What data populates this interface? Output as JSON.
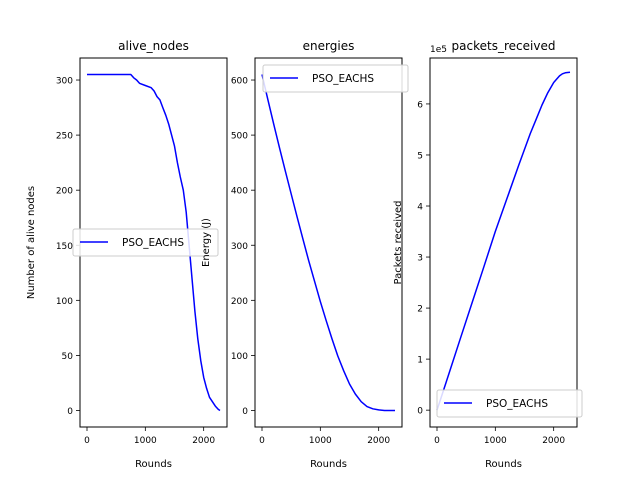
{
  "chart_data": [
    {
      "type": "line",
      "title": "alive_nodes",
      "xlabel": "Rounds",
      "ylabel": "Number of alive nodes",
      "xlim": [
        -120,
        2400
      ],
      "ylim": [
        -15,
        320
      ],
      "xticks": [
        0,
        1000,
        2000
      ],
      "yticks": [
        0,
        50,
        100,
        150,
        200,
        250,
        300
      ],
      "legend": "center-left",
      "series": [
        {
          "name": "PSO_EACHS",
          "color": "#0000ff",
          "x": [
            0,
            200,
            400,
            600,
            750,
            800,
            850,
            900,
            1000,
            1100,
            1150,
            1200,
            1250,
            1300,
            1350,
            1400,
            1450,
            1500,
            1550,
            1600,
            1650,
            1700,
            1750,
            1800,
            1850,
            1900,
            1950,
            2000,
            2050,
            2100,
            2150,
            2200,
            2250,
            2280
          ],
          "y": [
            305,
            305,
            305,
            305,
            305,
            302,
            300,
            297,
            295,
            293,
            290,
            285,
            282,
            275,
            268,
            260,
            250,
            240,
            225,
            212,
            200,
            180,
            150,
            120,
            90,
            65,
            45,
            30,
            20,
            12,
            8,
            4,
            1,
            0
          ]
        }
      ]
    },
    {
      "type": "line",
      "title": "energies",
      "xlabel": "Rounds",
      "ylabel": "Energy (J)",
      "xlim": [
        -120,
        2400
      ],
      "ylim": [
        -30,
        640
      ],
      "xticks": [
        0,
        1000,
        2000
      ],
      "yticks": [
        0,
        100,
        200,
        300,
        400,
        500,
        600
      ],
      "legend": "upper right",
      "series": [
        {
          "name": "PSO_EACHS",
          "color": "#0000ff",
          "x": [
            0,
            100,
            200,
            300,
            400,
            500,
            600,
            700,
            800,
            900,
            1000,
            1100,
            1200,
            1300,
            1400,
            1500,
            1600,
            1700,
            1800,
            1900,
            2000,
            2100,
            2200,
            2280
          ],
          "y": [
            610,
            565,
            520,
            477,
            435,
            393,
            352,
            312,
            272,
            235,
            198,
            163,
            130,
            99,
            72,
            48,
            30,
            16,
            7,
            3,
            1,
            0,
            0,
            0
          ]
        }
      ]
    },
    {
      "type": "line",
      "title": "packets_received",
      "xlabel": "Rounds",
      "ylabel": "Packets received",
      "offset_text": "1e5",
      "xlim": [
        -120,
        2400
      ],
      "ylim": [
        -0.33,
        6.9
      ],
      "xticks": [
        0,
        1000,
        2000
      ],
      "yticks": [
        0,
        1,
        2,
        3,
        4,
        5,
        6
      ],
      "legend": "lower right",
      "series": [
        {
          "name": "PSO_EACHS",
          "color": "#0000ff",
          "x": [
            0,
            200,
            400,
            600,
            800,
            1000,
            1200,
            1400,
            1600,
            1700,
            1800,
            1900,
            2000,
            2100,
            2150,
            2200,
            2280
          ],
          "y": [
            0,
            0.7,
            1.4,
            2.1,
            2.8,
            3.5,
            4.15,
            4.8,
            5.42,
            5.7,
            5.98,
            6.22,
            6.42,
            6.55,
            6.59,
            6.61,
            6.62
          ]
        }
      ]
    }
  ]
}
